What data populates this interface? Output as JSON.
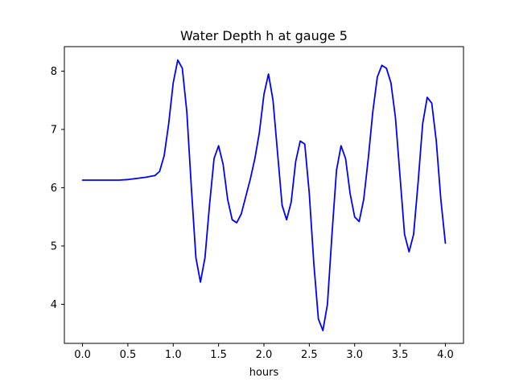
{
  "chart_data": {
    "type": "line",
    "title": "Water Depth h at gauge 5",
    "xlabel": "hours",
    "ylabel": "",
    "xlim": [
      -0.2,
      4.2
    ],
    "ylim": [
      3.33,
      8.42
    ],
    "grid": false,
    "xticks": [
      0.0,
      0.5,
      1.0,
      1.5,
      2.0,
      2.5,
      3.0,
      3.5,
      4.0
    ],
    "xtick_labels": [
      "0.0",
      "0.5",
      "1.0",
      "1.5",
      "2.0",
      "2.5",
      "3.0",
      "3.5",
      "4.0"
    ],
    "yticks": [
      4,
      5,
      6,
      7,
      8
    ],
    "ytick_labels": [
      "4",
      "5",
      "6",
      "7",
      "8"
    ],
    "series": [
      {
        "color": "#0000ff",
        "points": [
          [
            0.0,
            6.13
          ],
          [
            0.1,
            6.13
          ],
          [
            0.2,
            6.13
          ],
          [
            0.3,
            6.13
          ],
          [
            0.4,
            6.13
          ],
          [
            0.5,
            6.14
          ],
          [
            0.6,
            6.16
          ],
          [
            0.7,
            6.18
          ],
          [
            0.8,
            6.21
          ],
          [
            0.85,
            6.28
          ],
          [
            0.9,
            6.55
          ],
          [
            0.95,
            7.1
          ],
          [
            1.0,
            7.8
          ],
          [
            1.05,
            8.19
          ],
          [
            1.1,
            8.05
          ],
          [
            1.15,
            7.3
          ],
          [
            1.2,
            6.0
          ],
          [
            1.25,
            4.8
          ],
          [
            1.3,
            4.38
          ],
          [
            1.35,
            4.8
          ],
          [
            1.4,
            5.7
          ],
          [
            1.45,
            6.5
          ],
          [
            1.5,
            6.72
          ],
          [
            1.55,
            6.4
          ],
          [
            1.6,
            5.8
          ],
          [
            1.65,
            5.45
          ],
          [
            1.7,
            5.4
          ],
          [
            1.75,
            5.55
          ],
          [
            1.8,
            5.85
          ],
          [
            1.85,
            6.15
          ],
          [
            1.9,
            6.5
          ],
          [
            1.95,
            6.95
          ],
          [
            2.0,
            7.6
          ],
          [
            2.05,
            7.95
          ],
          [
            2.1,
            7.5
          ],
          [
            2.15,
            6.6
          ],
          [
            2.2,
            5.7
          ],
          [
            2.25,
            5.45
          ],
          [
            2.3,
            5.75
          ],
          [
            2.35,
            6.45
          ],
          [
            2.4,
            6.8
          ],
          [
            2.45,
            6.75
          ],
          [
            2.5,
            5.9
          ],
          [
            2.55,
            4.7
          ],
          [
            2.6,
            3.75
          ],
          [
            2.65,
            3.55
          ],
          [
            2.7,
            4.0
          ],
          [
            2.75,
            5.2
          ],
          [
            2.8,
            6.3
          ],
          [
            2.85,
            6.72
          ],
          [
            2.9,
            6.5
          ],
          [
            2.95,
            5.9
          ],
          [
            3.0,
            5.5
          ],
          [
            3.05,
            5.42
          ],
          [
            3.1,
            5.8
          ],
          [
            3.15,
            6.5
          ],
          [
            3.2,
            7.3
          ],
          [
            3.25,
            7.9
          ],
          [
            3.3,
            8.1
          ],
          [
            3.35,
            8.05
          ],
          [
            3.4,
            7.8
          ],
          [
            3.45,
            7.2
          ],
          [
            3.5,
            6.2
          ],
          [
            3.55,
            5.2
          ],
          [
            3.6,
            4.9
          ],
          [
            3.65,
            5.2
          ],
          [
            3.7,
            6.1
          ],
          [
            3.75,
            7.1
          ],
          [
            3.8,
            7.55
          ],
          [
            3.85,
            7.45
          ],
          [
            3.9,
            6.8
          ],
          [
            3.95,
            5.8
          ],
          [
            4.0,
            5.05
          ]
        ]
      }
    ]
  }
}
